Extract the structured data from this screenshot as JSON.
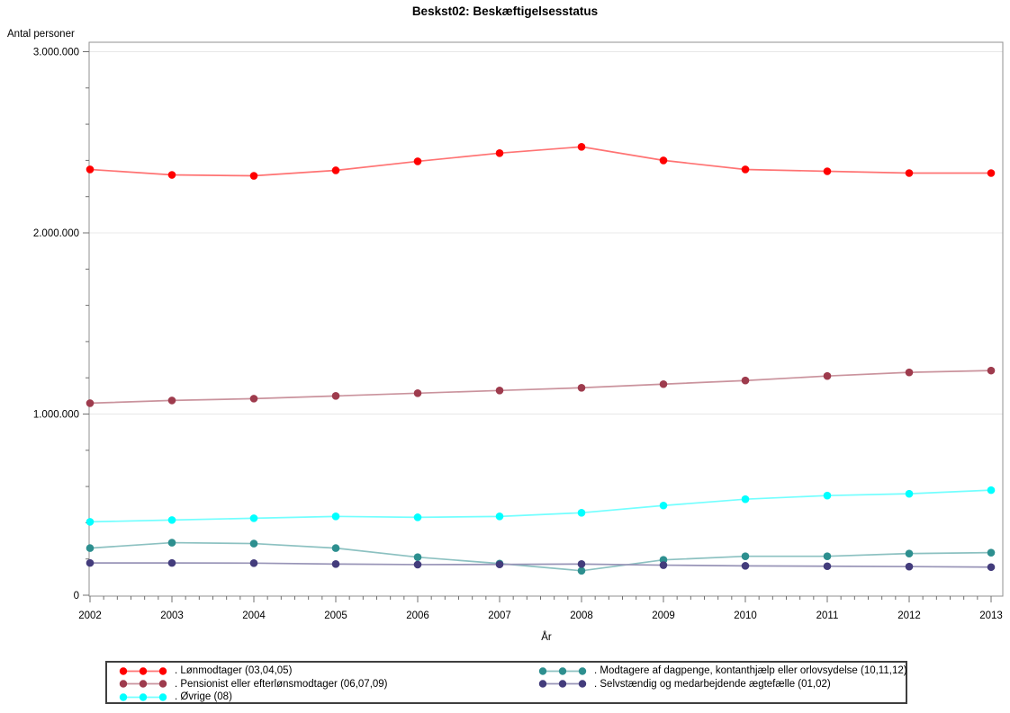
{
  "chart": {
    "title": "Beskst02: Beskæftigelsesstatus",
    "y_axis_label": "Antal personer",
    "x_axis_label": "År"
  },
  "chart_data": {
    "type": "line",
    "title": "Beskst02: Beskæftigelsesstatus",
    "xlabel": "År",
    "ylabel": "Antal personer",
    "x": [
      "2002",
      "2003",
      "2004",
      "2005",
      "2006",
      "2007",
      "2008",
      "2009",
      "2010",
      "2011",
      "2012",
      "2013"
    ],
    "ylim": [
      0,
      3000000
    ],
    "y_ticks": [
      0,
      1000000,
      2000000,
      3000000
    ],
    "y_tick_labels": [
      "0",
      "1.000.000",
      "2.000.000",
      "3.000.000"
    ],
    "y_minor_ticks_per_interval": 4,
    "x_minor_ticks_per_interval": 5,
    "grid": "horizontal-major-light",
    "legend_position": "bottom-box-two-columns",
    "marker_style": "filled-circle-with-line",
    "colors": {
      "grid": "#e8e8e8",
      "frame": "#909090",
      "tick": "#707070"
    },
    "series": [
      {
        "name": ". Lønmodtager (03,04,05)",
        "color": "#ff0000",
        "values": [
          2350000,
          2320000,
          2315000,
          2345000,
          2395000,
          2440000,
          2475000,
          2400000,
          2350000,
          2340000,
          2330000,
          2330000
        ]
      },
      {
        "name": ". Pensionist eller efterlønsmodtager (06,07,09)",
        "color": "#9e3b4d",
        "values": [
          1060000,
          1075000,
          1085000,
          1100000,
          1115000,
          1130000,
          1145000,
          1165000,
          1185000,
          1210000,
          1230000,
          1240000
        ]
      },
      {
        "name": ". Øvrige (08)",
        "color": "#00ffff",
        "values": [
          405000,
          415000,
          425000,
          435000,
          430000,
          435000,
          455000,
          495000,
          530000,
          550000,
          560000,
          580000
        ]
      },
      {
        "name": ". Modtagere af dagpenge, kontanthjælp eller orlovsydelse (10,11,12)",
        "color": "#2d8f8f",
        "values": [
          260000,
          290000,
          285000,
          260000,
          210000,
          175000,
          135000,
          195000,
          215000,
          215000,
          230000,
          235000
        ]
      },
      {
        "name": ". Selvstændig og medarbejdende ægtefælle (01,02)",
        "color": "#433c7c",
        "values": [
          178000,
          178000,
          177000,
          172000,
          169000,
          170000,
          172000,
          166000,
          162000,
          160000,
          158000,
          155000
        ]
      }
    ],
    "legend_columns": [
      [
        0,
        1,
        2
      ],
      [
        3,
        4
      ]
    ]
  }
}
